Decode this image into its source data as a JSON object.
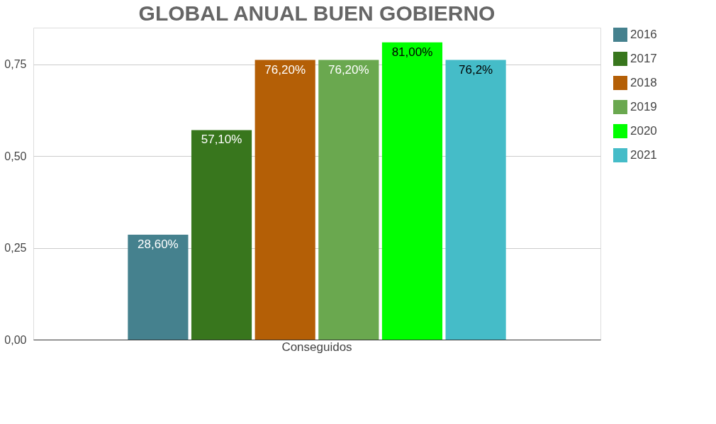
{
  "chart_data": {
    "type": "bar",
    "title": "GLOBAL ANUAL BUEN GOBIERNO",
    "categories": [
      "Conseguidos"
    ],
    "series": [
      {
        "name": "2016",
        "color": "#45818e",
        "values": [
          0.286
        ],
        "value_labels": [
          "28,60%"
        ]
      },
      {
        "name": "2017",
        "color": "#38761d",
        "values": [
          0.571
        ],
        "value_labels": [
          "57,10%"
        ]
      },
      {
        "name": "2018",
        "color": "#b45f06",
        "values": [
          0.762
        ],
        "value_labels": [
          "76,20%"
        ]
      },
      {
        "name": "2019",
        "color": "#6aa84f",
        "values": [
          0.762
        ],
        "value_labels": [
          "76,20%"
        ]
      },
      {
        "name": "2020",
        "color": "#00ff00",
        "values": [
          0.81
        ],
        "value_labels": [
          "81,00%"
        ]
      },
      {
        "name": "2021",
        "color": "#45bcc8",
        "values": [
          0.762
        ],
        "value_labels": [
          "76,2%"
        ]
      }
    ],
    "ylim": [
      0,
      0.85
    ],
    "yticks": [
      {
        "value": 0,
        "label": "0,00"
      },
      {
        "value": 0.25,
        "label": "0,25"
      },
      {
        "value": 0.5,
        "label": "0,50"
      },
      {
        "value": 0.75,
        "label": "0,75"
      }
    ],
    "grid": "y",
    "legend": "right"
  }
}
